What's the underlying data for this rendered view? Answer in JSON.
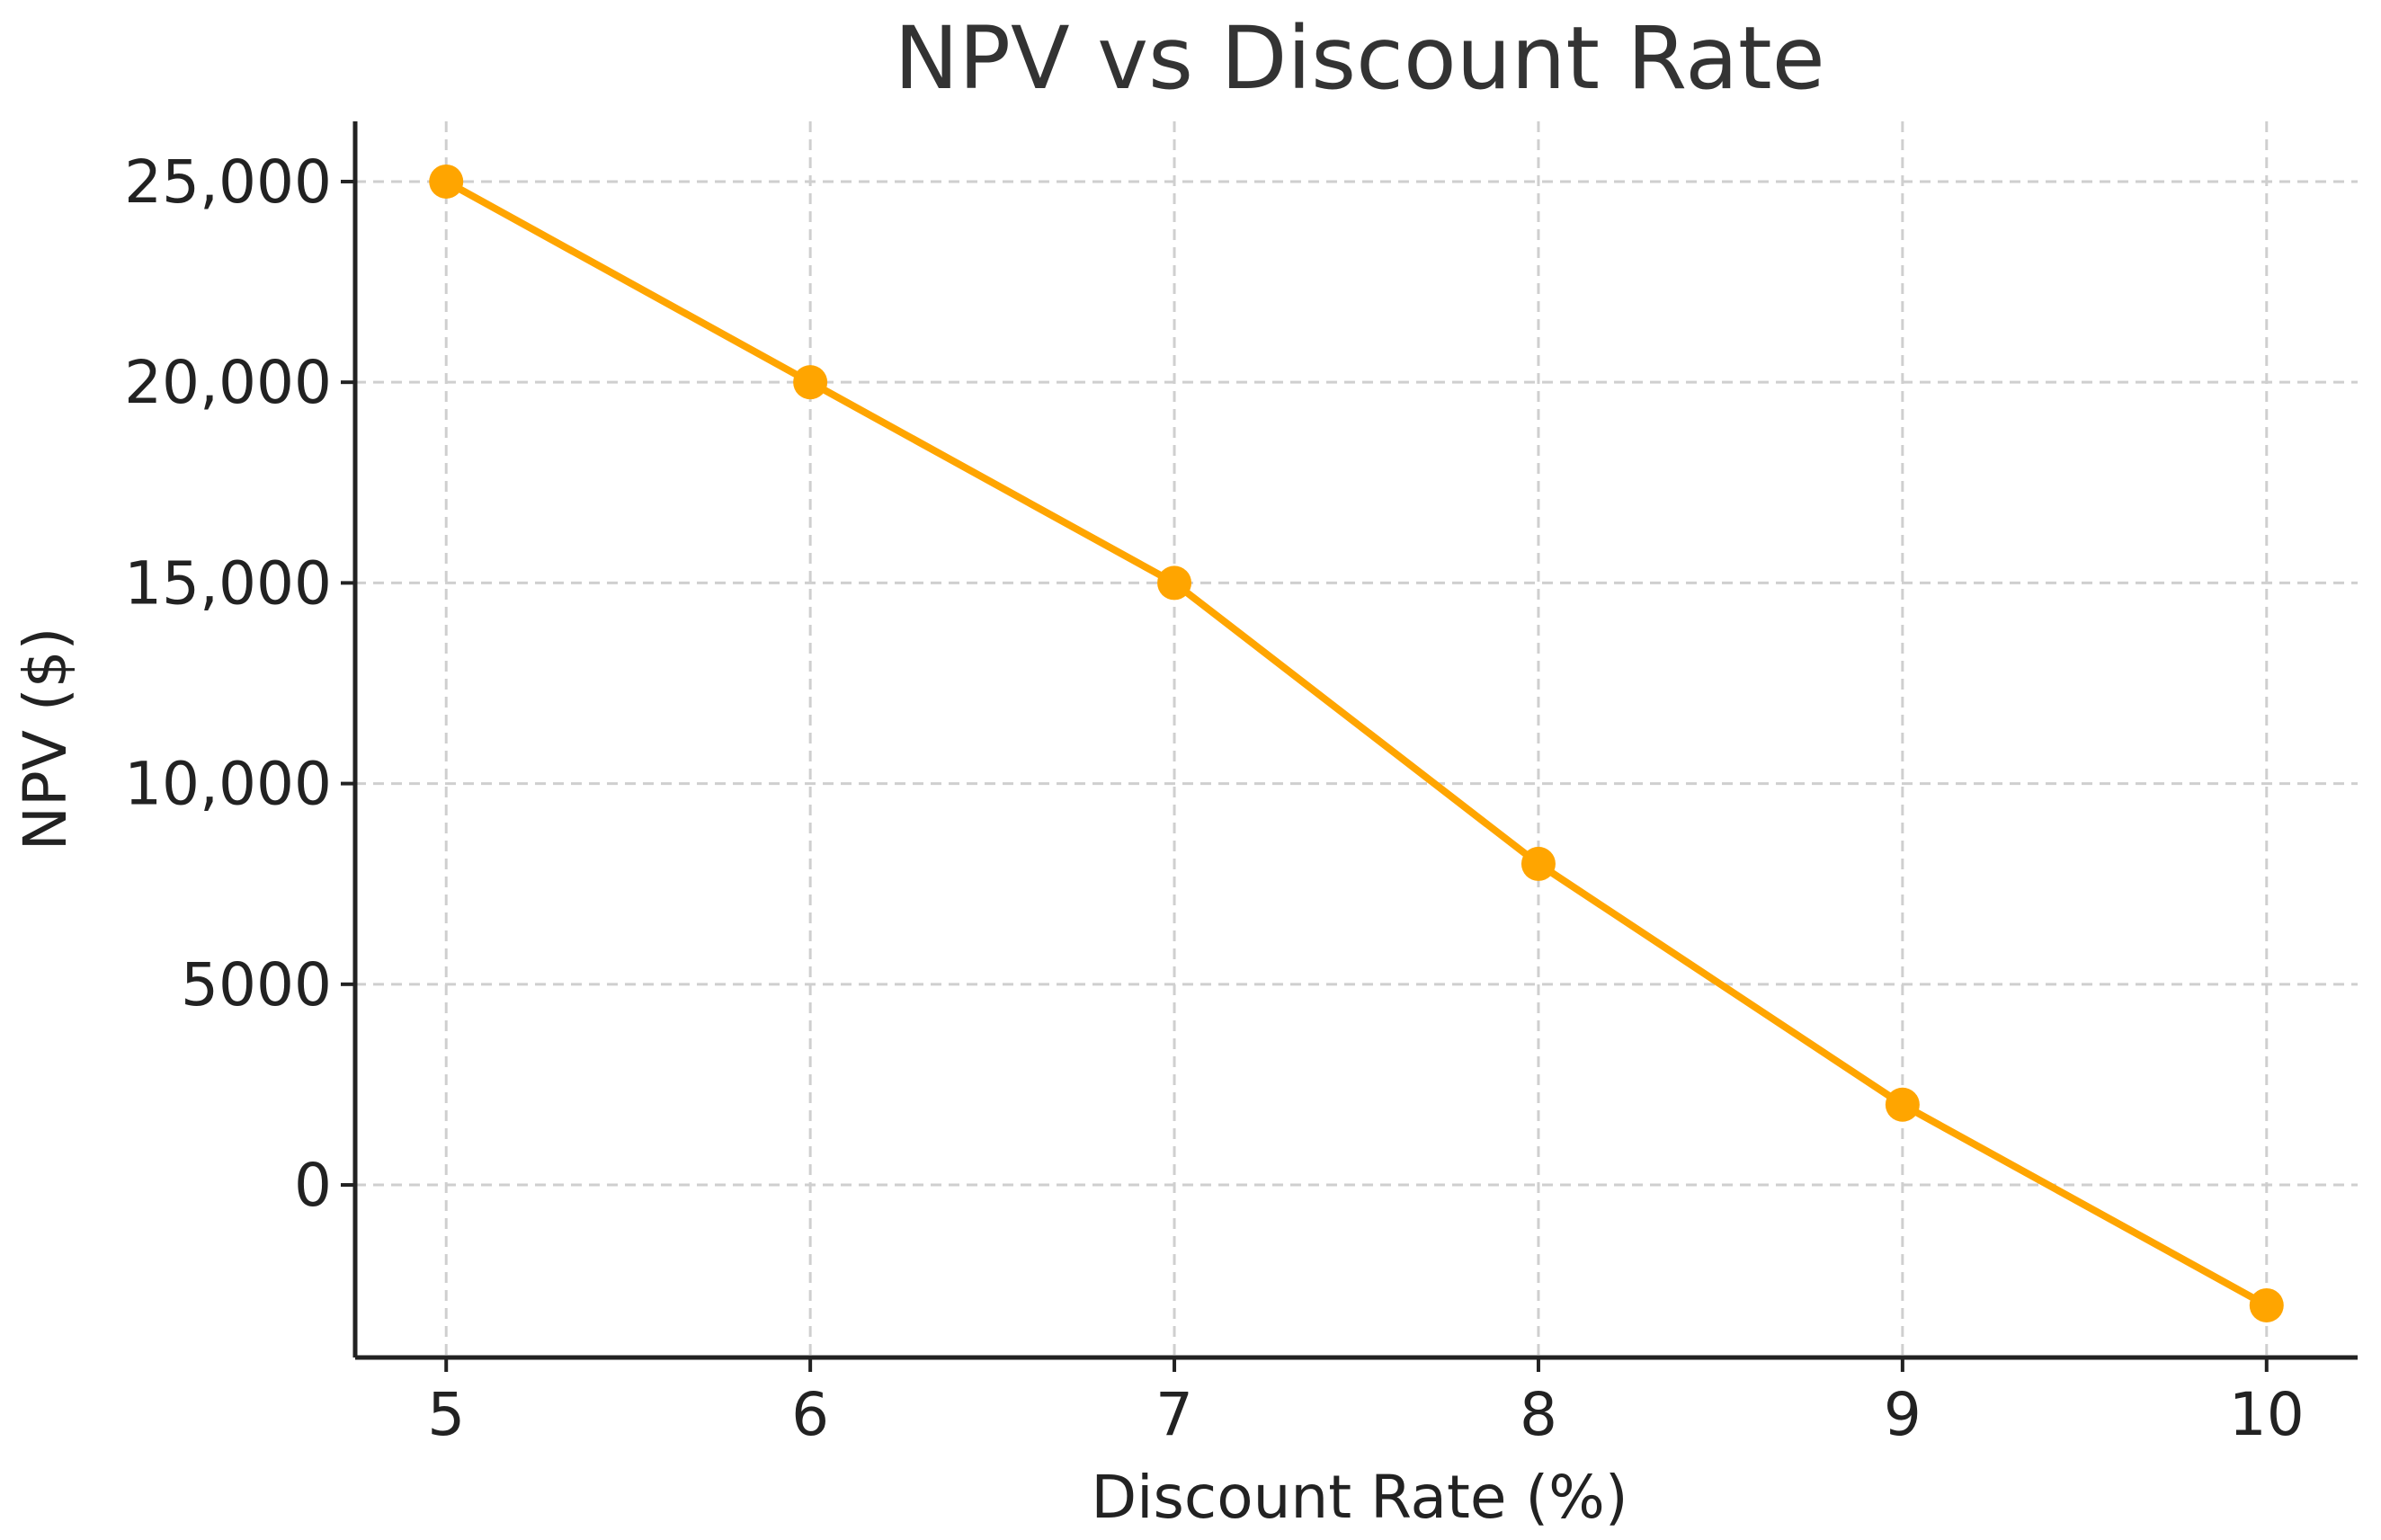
{
  "chart_data": {
    "type": "line",
    "title": "NPV vs Discount Rate",
    "xlabel": "Discount Rate (%)",
    "ylabel": "NPV ($)",
    "x": [
      5,
      6,
      7,
      8,
      9,
      10
    ],
    "xticks": [
      5,
      6,
      7,
      8,
      9,
      10
    ],
    "xtick_labels": [
      "5",
      "6",
      "7",
      "8",
      "9",
      "10"
    ],
    "yticks": [
      0,
      5000,
      10000,
      15000,
      20000,
      25000
    ],
    "ytick_labels": [
      "0",
      "5000",
      "10,000",
      "15,000",
      "20,000",
      "25,000"
    ],
    "xlim": [
      4.75,
      10.25
    ],
    "ylim": [
      -4300,
      26500
    ],
    "grid": true,
    "series": [
      {
        "values": [
          25000,
          20000,
          15000,
          8000,
          2000,
          -3000
        ],
        "color": "#FFA500",
        "marker": "circle"
      }
    ]
  }
}
